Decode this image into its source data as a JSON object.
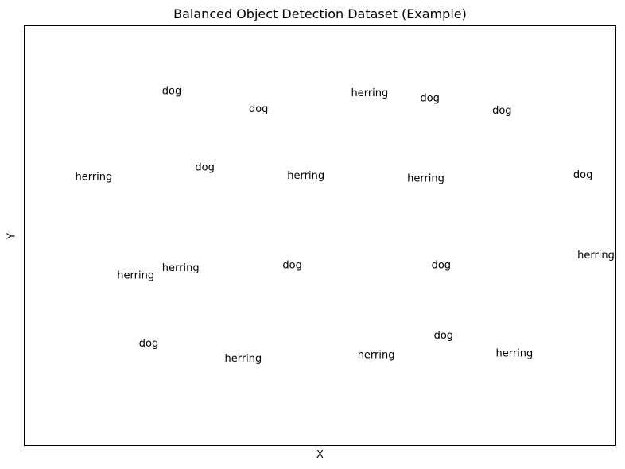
{
  "chart_data": {
    "type": "scatter",
    "title": "Balanced Object Detection Dataset (Example)",
    "xlabel": "X",
    "ylabel": "Y",
    "grid": false,
    "xlim": [
      0,
      1
    ],
    "ylim": [
      0,
      1
    ],
    "points": [
      {
        "label": "dog",
        "x": 0.249,
        "y": 0.844
      },
      {
        "label": "dog",
        "x": 0.396,
        "y": 0.802
      },
      {
        "label": "herring",
        "x": 0.584,
        "y": 0.84
      },
      {
        "label": "dog",
        "x": 0.686,
        "y": 0.827
      },
      {
        "label": "dog",
        "x": 0.808,
        "y": 0.798
      },
      {
        "label": "herring",
        "x": 0.117,
        "y": 0.639
      },
      {
        "label": "dog",
        "x": 0.305,
        "y": 0.662
      },
      {
        "label": "herring",
        "x": 0.476,
        "y": 0.642
      },
      {
        "label": "herring",
        "x": 0.679,
        "y": 0.636
      },
      {
        "label": "dog",
        "x": 0.945,
        "y": 0.644
      },
      {
        "label": "herring",
        "x": 0.188,
        "y": 0.404
      },
      {
        "label": "herring",
        "x": 0.264,
        "y": 0.422
      },
      {
        "label": "dog",
        "x": 0.453,
        "y": 0.429
      },
      {
        "label": "dog",
        "x": 0.705,
        "y": 0.429
      },
      {
        "label": "herring",
        "x": 0.967,
        "y": 0.453
      },
      {
        "label": "dog",
        "x": 0.21,
        "y": 0.242
      },
      {
        "label": "herring",
        "x": 0.37,
        "y": 0.206
      },
      {
        "label": "herring",
        "x": 0.595,
        "y": 0.214
      },
      {
        "label": "dog",
        "x": 0.709,
        "y": 0.261
      },
      {
        "label": "herring",
        "x": 0.829,
        "y": 0.218
      }
    ]
  }
}
